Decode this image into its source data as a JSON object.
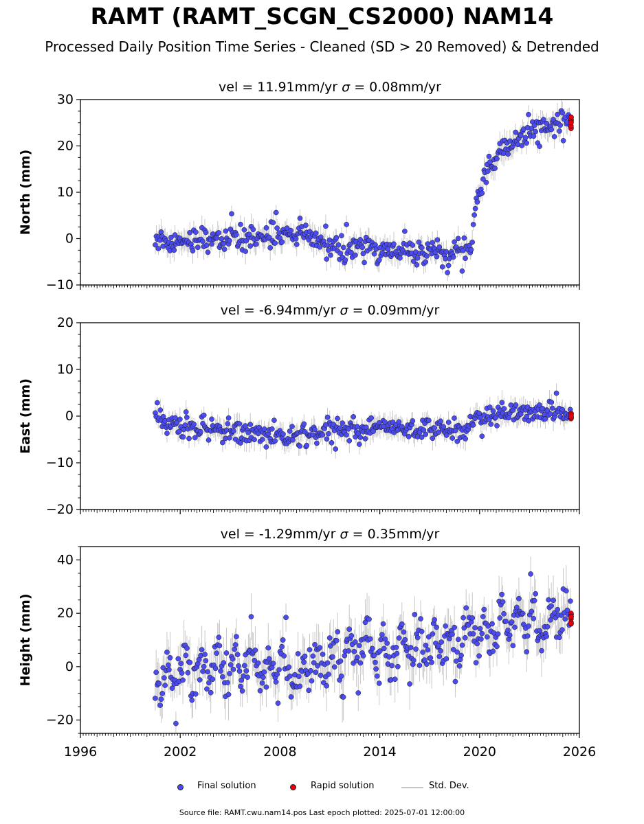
{
  "title": "RAMT (RAMT_SCGN_CS2000) NAM14",
  "subtitle": "Processed Daily Position Time Series - Cleaned (SD > 20 Removed) & Detrended",
  "legend": {
    "final": "Final solution",
    "rapid": "Rapid solution",
    "std": "Std. Dev."
  },
  "footer": "Source file: RAMT.cwu.nam14.pos  Last epoch plotted: 2025-07-01 12:00:00",
  "colors": {
    "final": "#4b4bf0",
    "rapid": "#e8000b",
    "std": "#c8c8c8",
    "edge": "#1a1a1a"
  },
  "chart_data": [
    {
      "type": "scatter",
      "panel": "north",
      "title_vel": "vel = 11.91mm/yr",
      "title_sigma_symbol": "σ",
      "title_sigma_rest": " = 0.08mm/yr",
      "ylabel": "North (mm)",
      "xlim": [
        1996,
        2026
      ],
      "ylim": [
        -10,
        30
      ],
      "yticks": [
        -10,
        0,
        10,
        20,
        30
      ],
      "ytick_labels": [
        "−10",
        "0",
        "10",
        "20",
        "30"
      ],
      "series": [
        {
          "role": "final",
          "x": [
            2000.5,
            2001.5,
            2003.0,
            2005.0,
            2007.0,
            2008.5,
            2009.5,
            2010.5,
            2011.5,
            2012.5,
            2013.5,
            2015.0,
            2016.5,
            2018.0,
            2019.0,
            2019.5,
            2019.7,
            2020.0,
            2020.5,
            2021.0,
            2022.0,
            2023.0,
            2024.0,
            2025.0,
            2025.45
          ],
          "y": [
            0.0,
            -0.5,
            0.0,
            0.0,
            0.0,
            1.0,
            0.5,
            -1.0,
            -1.8,
            -2.0,
            -2.2,
            -2.5,
            -2.8,
            -3.0,
            -3.0,
            -3.0,
            6.0,
            11.0,
            15.0,
            18.0,
            21.0,
            23.0,
            24.0,
            25.0,
            25.5
          ],
          "noise": 1.3
        },
        {
          "role": "rapid",
          "x": [
            2025.5
          ],
          "y": [
            25.0
          ],
          "spread": 2.5
        }
      ]
    },
    {
      "type": "scatter",
      "panel": "east",
      "title_vel": "vel = -6.94mm/yr",
      "title_sigma_symbol": "σ",
      "title_sigma_rest": " = 0.09mm/yr",
      "ylabel": "East (mm)",
      "xlim": [
        1996,
        2026
      ],
      "ylim": [
        -20,
        20
      ],
      "yticks": [
        -20,
        -10,
        0,
        10,
        20
      ],
      "ytick_labels": [
        "−20",
        "−10",
        "0",
        "10",
        "20"
      ],
      "series": [
        {
          "role": "final",
          "x": [
            2000.5,
            2001.0,
            2003.0,
            2005.0,
            2007.0,
            2008.5,
            2010.0,
            2010.5,
            2012.0,
            2014.0,
            2016.0,
            2018.0,
            2019.0,
            2019.5,
            2020.0,
            2021.0,
            2022.0,
            2023.0,
            2024.0,
            2025.0,
            2025.45
          ],
          "y": [
            0.0,
            -1.5,
            -2.5,
            -3.5,
            -4.0,
            -4.5,
            -4.0,
            -3.0,
            -3.0,
            -2.8,
            -2.8,
            -3.0,
            -3.0,
            -1.5,
            -0.5,
            0.0,
            0.5,
            1.0,
            1.0,
            0.5,
            0.0
          ],
          "noise": 1.2
        },
        {
          "role": "rapid",
          "x": [
            2025.5
          ],
          "y": [
            0.0
          ],
          "spread": 1.2
        }
      ]
    },
    {
      "type": "scatter",
      "panel": "height",
      "title_vel": "vel = -1.29mm/yr",
      "title_sigma_symbol": "σ",
      "title_sigma_rest": " = 0.35mm/yr",
      "ylabel": "Height (mm)",
      "xlim": [
        1996,
        2026
      ],
      "ylim": [
        -25,
        45
      ],
      "yticks": [
        -20,
        0,
        20,
        40
      ],
      "ytick_labels": [
        "−20",
        "0",
        "20",
        "40"
      ],
      "xticks": [
        1996,
        2002,
        2008,
        2014,
        2020,
        2026
      ],
      "xtick_labels": [
        "1996",
        "2002",
        "2008",
        "2014",
        "2020",
        "2026"
      ],
      "series": [
        {
          "role": "final",
          "x": [
            2000.5,
            2002.0,
            2004.0,
            2006.0,
            2008.0,
            2009.5,
            2010.2,
            2012.0,
            2014.0,
            2016.0,
            2018.0,
            2020.0,
            2022.0,
            2024.0,
            2025.45
          ],
          "y": [
            -3.0,
            -1.0,
            0.0,
            -1.0,
            0.0,
            -2.0,
            3.0,
            5.0,
            7.0,
            8.0,
            9.0,
            12.0,
            16.0,
            16.0,
            16.0
          ],
          "noise": 4.5,
          "seasonal_amplitude": 5.0
        },
        {
          "role": "rapid",
          "x": [
            2025.5
          ],
          "y": [
            18.0
          ],
          "spread": 4.5
        }
      ]
    }
  ]
}
